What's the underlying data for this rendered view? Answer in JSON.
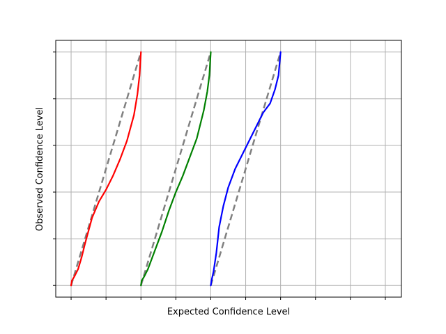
{
  "chart_data": {
    "type": "line",
    "title": "",
    "xlabel": "Expected Confidence Level",
    "ylabel": "Observed Confidence Level",
    "grid": true,
    "legend": "none",
    "x_ticks": [
      0,
      0.5,
      1,
      1.5,
      2,
      2.5,
      3,
      3.5,
      4,
      4.5
    ],
    "y_ticks": [
      0,
      0.2,
      0.4,
      0.6,
      0.8,
      1.0
    ],
    "xlim": [
      -0.22,
      4.73
    ],
    "ylim": [
      -0.05,
      1.05
    ],
    "series": [
      {
        "color": "#ff0000",
        "style": "solid",
        "x": [
          0.0,
          0.01,
          0.05,
          0.1,
          0.15,
          0.2,
          0.3,
          0.4,
          0.5,
          0.6,
          0.7,
          0.8,
          0.9,
          0.95,
          0.98,
          1.0
        ],
        "y": [
          0.0,
          0.02,
          0.04,
          0.07,
          0.12,
          0.18,
          0.29,
          0.36,
          0.41,
          0.47,
          0.54,
          0.62,
          0.73,
          0.82,
          0.9,
          1.0
        ]
      },
      {
        "color": "#008000",
        "style": "solid",
        "x": [
          1.0,
          1.01,
          1.05,
          1.1,
          1.2,
          1.3,
          1.4,
          1.5,
          1.6,
          1.7,
          1.8,
          1.9,
          1.95,
          1.98,
          2.0
        ],
        "y": [
          0.0,
          0.02,
          0.04,
          0.07,
          0.15,
          0.23,
          0.32,
          0.4,
          0.47,
          0.55,
          0.63,
          0.75,
          0.83,
          0.9,
          1.0
        ]
      },
      {
        "color": "#0000ff",
        "style": "solid",
        "x": [
          2.0,
          2.01,
          2.04,
          2.08,
          2.12,
          2.18,
          2.25,
          2.35,
          2.45,
          2.55,
          2.65,
          2.75,
          2.85,
          2.92,
          2.97,
          3.0
        ],
        "y": [
          0.0,
          0.02,
          0.06,
          0.14,
          0.25,
          0.34,
          0.42,
          0.5,
          0.56,
          0.62,
          0.68,
          0.74,
          0.78,
          0.84,
          0.9,
          1.0
        ]
      },
      {
        "color": "#808080",
        "style": "dashed",
        "x": [
          0,
          1
        ],
        "y": [
          0,
          1
        ]
      },
      {
        "color": "#808080",
        "style": "dashed",
        "x": [
          1,
          2
        ],
        "y": [
          0,
          1
        ]
      },
      {
        "color": "#808080",
        "style": "dashed",
        "x": [
          2,
          3
        ],
        "y": [
          0,
          1
        ]
      }
    ]
  }
}
